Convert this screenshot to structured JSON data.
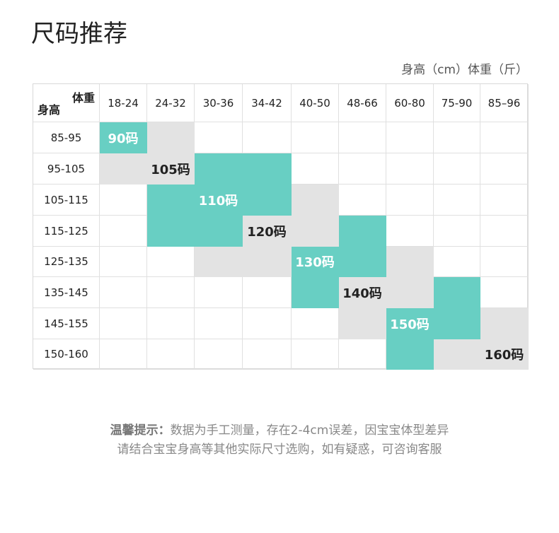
{
  "header": {
    "title": "尺码推荐",
    "unit": "身高（cm）体重（斤）"
  },
  "table": {
    "corner_weight": "体重",
    "corner_height": "身高",
    "columns": [
      "18-24",
      "24-32",
      "30-36",
      "34-42",
      "40-50",
      "48-66",
      "60-80",
      "75-90",
      "85–96"
    ],
    "rows": [
      "85-95",
      "95-105",
      "105-115",
      "115-125",
      "125-135",
      "135-145",
      "145-155",
      "150-160"
    ],
    "sizes": [
      "90码",
      "105码",
      "110码",
      "120码",
      "130码",
      "140码",
      "150码",
      "160码"
    ]
  },
  "note": {
    "label": "温馨提示：",
    "line1": "数据为手工测量，存在2-4cm误差，因宝宝体型差异",
    "line2": "请结合宝宝身高等其他实际尺寸选购，如有疑惑，可咨询客服"
  }
}
